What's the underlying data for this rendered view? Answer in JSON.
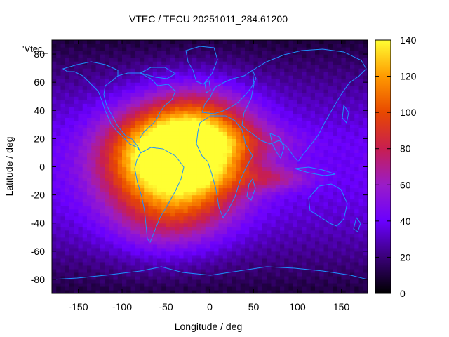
{
  "chart_data": {
    "type": "heatmap",
    "title": "VTEC / TECU 20251011_284.61200",
    "xlabel": "Longitude / deg",
    "ylabel": "Latitude / deg",
    "xlim": [
      -180,
      180
    ],
    "ylim": [
      -90,
      90
    ],
    "x_ticks": [
      -150,
      -100,
      -50,
      0,
      50,
      100,
      150
    ],
    "y_ticks": [
      -80,
      -60,
      -40,
      -20,
      0,
      20,
      40,
      60,
      80
    ],
    "colorbar": {
      "range": [
        0,
        140
      ],
      "ticks": [
        0,
        20,
        40,
        60,
        80,
        100,
        120,
        140
      ],
      "colors": [
        "#000000",
        "#3a0078",
        "#6a00ff",
        "#9a1cc8",
        "#c81e50",
        "#e84800",
        "#ff9a00",
        "#ffff33"
      ]
    },
    "series_label": "'Vtec_",
    "coastline_color": "#1e90ff",
    "grid": false,
    "legend": "top-left",
    "features": [
      {
        "lon": -15,
        "lat": 15,
        "peak": 138,
        "lon_spread": 45,
        "lat_spread": 25
      },
      {
        "lon": -55,
        "lat": -10,
        "peak": 75,
        "lon_spread": 50,
        "lat_spread": 30
      },
      {
        "lon": -75,
        "lat": 10,
        "peak": 70,
        "lon_spread": 40,
        "lat_spread": 20
      },
      {
        "lon": -40,
        "lat": -35,
        "peak": 50,
        "lon_spread": 45,
        "lat_spread": 18
      },
      {
        "lon": 75,
        "lat": -8,
        "peak": 55,
        "lon_spread": 30,
        "lat_spread": 6
      },
      {
        "lon": 40,
        "lat": 18,
        "peak": 42,
        "lon_spread": 60,
        "lat_spread": 8
      },
      {
        "lon": -10,
        "lat": -8,
        "peak": 35,
        "lon_spread": 30,
        "lat_spread": 10
      }
    ]
  }
}
